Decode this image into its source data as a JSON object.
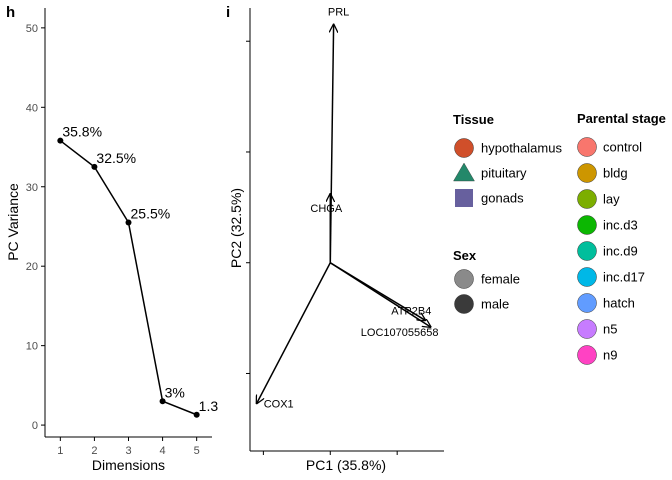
{
  "chart_data": [
    {
      "panel": "h",
      "type": "line",
      "xlabel": "Dimensions",
      "ylabel": "PC Variance",
      "x": [
        1,
        2,
        3,
        4,
        5
      ],
      "values": [
        35.8,
        32.5,
        25.5,
        3.0,
        1.3
      ],
      "point_labels": [
        "35.8%",
        "32.5%",
        "25.5%",
        "3%",
        "1.3"
      ],
      "xticks": [
        "1",
        "2",
        "3",
        "4",
        "5"
      ],
      "yticks": [
        "0",
        "10",
        "20",
        "30",
        "40",
        "50"
      ],
      "xlim": [
        0.55,
        5.45
      ],
      "ylim": [
        -1.5,
        52.5
      ],
      "grid": false
    },
    {
      "panel": "i",
      "type": "biplot",
      "xlabel": "PC1 (35.8%)",
      "ylabel": "PC2 (32.5%)",
      "xlim": [
        -1.2,
        1.7
      ],
      "ylim": [
        -1.7,
        2.3
      ],
      "grid": false,
      "origin": [
        0,
        0
      ],
      "arrows": [
        {
          "label": "PRL",
          "x": 0.05,
          "y": 2.15
        },
        {
          "label": "CHGA",
          "x": 0.0,
          "y": 0.62
        },
        {
          "label": "ATP2B4",
          "x": 1.42,
          "y": -0.52
        },
        {
          "label": "LOC107055658",
          "x": 1.5,
          "y": -0.58
        },
        {
          "label": "COX1",
          "x": -1.1,
          "y": -1.27
        }
      ]
    }
  ],
  "panel_labels": [
    "h",
    "i"
  ],
  "legend": {
    "tissue": {
      "title": "Tissue",
      "items": [
        {
          "label": "hypothalamus",
          "shape": "circle",
          "color": "#D04F2A"
        },
        {
          "label": "pituitary",
          "shape": "triangle",
          "color": "#23886A"
        },
        {
          "label": "gonads",
          "shape": "square",
          "color": "#67609E"
        }
      ]
    },
    "sex": {
      "title": "Sex",
      "items": [
        {
          "label": "female",
          "shape": "circle",
          "color": "#8A8A8A"
        },
        {
          "label": "male",
          "shape": "circle",
          "color": "#3A3A3A"
        }
      ]
    },
    "stage": {
      "title": "Parental stage",
      "items": [
        {
          "label": "control",
          "color": "#F8766D"
        },
        {
          "label": "bldg",
          "color": "#CD9600"
        },
        {
          "label": "lay",
          "color": "#7CAE00"
        },
        {
          "label": "inc.d3",
          "color": "#0CB702"
        },
        {
          "label": "inc.d9",
          "color": "#00BE9C"
        },
        {
          "label": "inc.d17",
          "color": "#00B8E7"
        },
        {
          "label": "hatch",
          "color": "#619CFF"
        },
        {
          "label": "n5",
          "color": "#C77CFF"
        },
        {
          "label": "n9",
          "color": "#FF42C3"
        }
      ]
    }
  }
}
